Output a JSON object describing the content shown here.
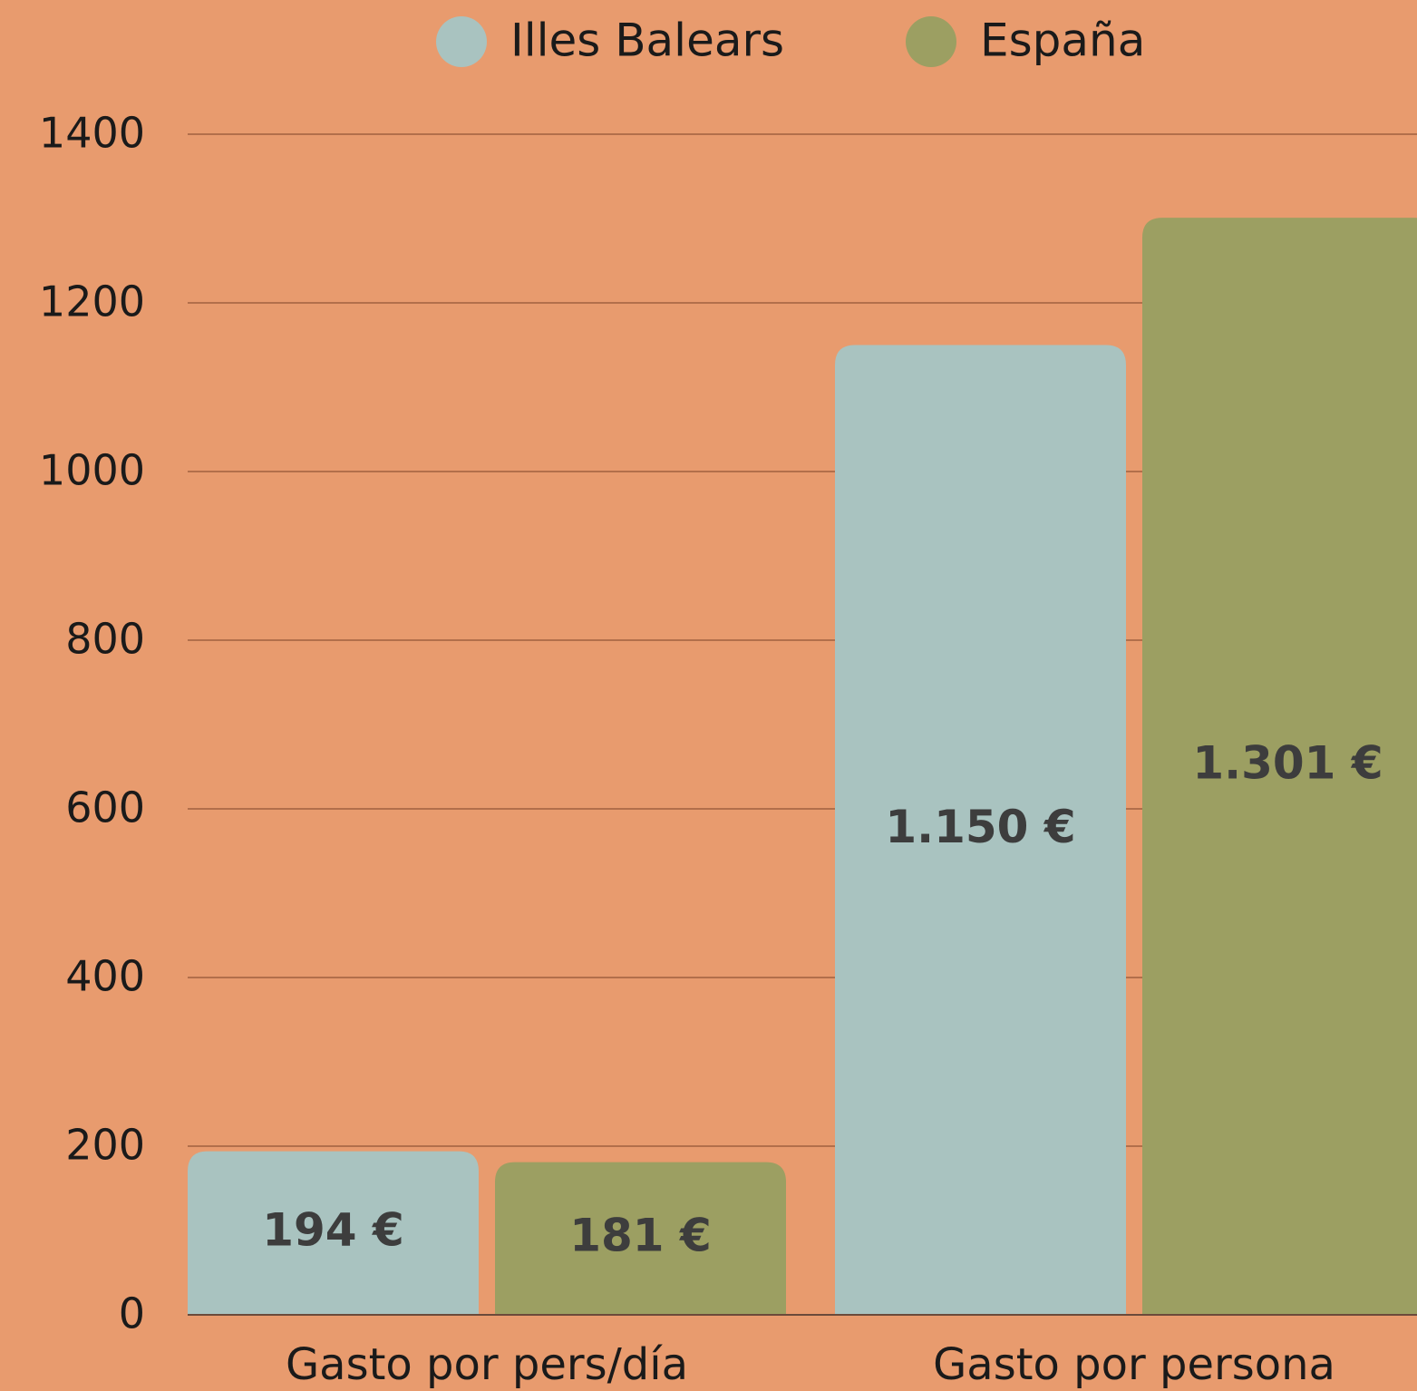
{
  "chart_data": {
    "type": "bar",
    "categories": [
      "Gasto por pers/día",
      "Gasto por persona"
    ],
    "series": [
      {
        "name": "Illes Balears",
        "color": "#a9c3c0",
        "values": [
          194,
          1150
        ],
        "value_labels": [
          "194 €",
          "1.150 €"
        ]
      },
      {
        "name": "España",
        "color": "#9c9f62",
        "values": [
          181,
          1301
        ],
        "value_labels": [
          "181 €",
          "1.301 €"
        ]
      }
    ],
    "ylim": [
      0,
      1400
    ],
    "yticks": [
      0,
      200,
      400,
      600,
      800,
      1000,
      1200,
      1400
    ],
    "grid": true,
    "legend": "top"
  }
}
